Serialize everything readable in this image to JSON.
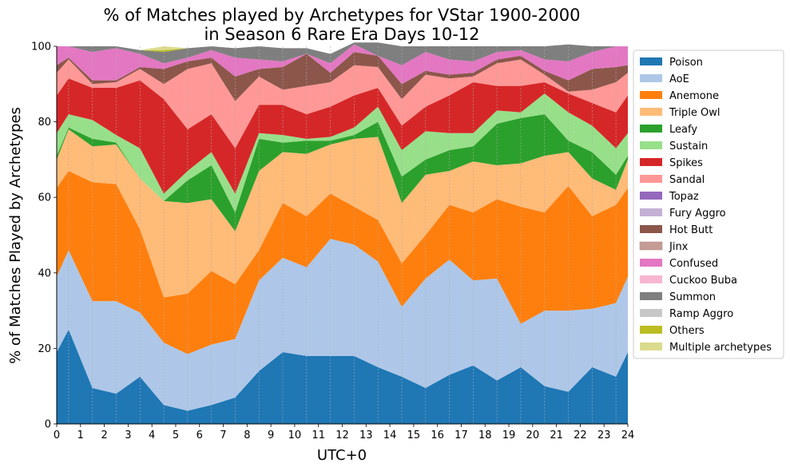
{
  "chart_data": {
    "type": "area",
    "stacked": true,
    "title_line1": "% of Matches played by Archetypes for VStar 1900-2000",
    "title_line2": "in Season 6 Rare Era Days 10-12",
    "xlabel": "UTC+0",
    "ylabel": "% of Matches Played by Archetypes",
    "xlim": [
      0,
      24
    ],
    "ylim": [
      0,
      100
    ],
    "x_ticks": [
      "0",
      "1",
      "2",
      "3",
      "4",
      "5",
      "6",
      "7",
      "8",
      "9",
      "10",
      "11",
      "12",
      "13",
      "14",
      "15",
      "16",
      "17",
      "18",
      "19",
      "20",
      "21",
      "22",
      "23",
      "24"
    ],
    "y_ticks": [
      "0",
      "20",
      "40",
      "60",
      "80",
      "100"
    ],
    "grid": "vertical dotted at half-hours",
    "legend_position": "outside right",
    "x": [
      0,
      0.5,
      1.5,
      2.5,
      3.5,
      4.5,
      5.5,
      6.5,
      7.5,
      8.5,
      9.5,
      10.5,
      11.5,
      12.5,
      13.5,
      14.5,
      15.5,
      16.5,
      17.5,
      18.5,
      19.5,
      20.5,
      21.5,
      22.5,
      23.5,
      24
    ],
    "series": [
      {
        "name": "Poison",
        "color": "#1f77b4",
        "values": [
          19,
          25,
          9.5,
          8,
          12.5,
          5,
          3.5,
          5,
          7,
          14,
          19,
          18,
          18,
          18,
          15,
          12.5,
          9.5,
          13,
          15.5,
          11.5,
          15,
          10,
          8.5,
          15,
          12.5,
          19
        ]
      },
      {
        "name": "AoE",
        "color": "#aec7e8",
        "values": [
          20,
          21,
          23,
          24.5,
          17,
          16.5,
          15,
          16,
          15.5,
          24,
          25,
          23.5,
          31,
          29.5,
          28,
          18.5,
          29,
          30.5,
          22.5,
          27,
          11.5,
          20,
          21.5,
          15.5,
          19.5,
          20
        ]
      },
      {
        "name": "Anemone",
        "color": "#ff7f0e",
        "values": [
          23.5,
          21,
          31.5,
          31,
          22,
          12,
          16,
          19.5,
          14.5,
          8,
          14.5,
          13.5,
          12,
          10,
          11,
          11.5,
          11.5,
          14.5,
          18,
          21,
          31,
          26,
          33,
          24.5,
          26,
          23.5
        ]
      },
      {
        "name": "Triple Owl",
        "color": "#ffbb78",
        "values": [
          7.5,
          11,
          9.5,
          10.5,
          13.5,
          25.5,
          24,
          19,
          14,
          21,
          13.5,
          16.5,
          13,
          18,
          22,
          16,
          16,
          9,
          13.5,
          9,
          11.5,
          15,
          9,
          10,
          4,
          7.5
        ]
      },
      {
        "name": "Leafy",
        "color": "#2ca02c",
        "values": [
          1,
          0.5,
          2,
          0.5,
          0,
          0,
          6,
          9,
          5,
          8.5,
          2.5,
          3.5,
          1,
          1,
          4,
          7,
          4,
          5.5,
          4,
          11,
          12,
          11,
          3,
          7,
          4,
          1
        ]
      },
      {
        "name": "Sustain",
        "color": "#98df8a",
        "values": [
          6,
          3.5,
          5,
          2,
          8,
          2,
          2.5,
          3.5,
          5,
          1.5,
          2,
          0.5,
          1,
          2,
          4,
          7,
          7.5,
          4.5,
          3.5,
          3.5,
          1.5,
          5.5,
          7.5,
          7,
          7,
          6
        ]
      },
      {
        "name": "Spikes",
        "color": "#d62728",
        "values": [
          10,
          9.5,
          8.5,
          12.5,
          18,
          25,
          11,
          10,
          12,
          7.5,
          8,
          6.5,
          8,
          8.5,
          5,
          6.5,
          6.5,
          10,
          13.5,
          6.5,
          7,
          3,
          5,
          6,
          9.5,
          10
        ]
      },
      {
        "name": "Sandal",
        "color": "#ff9896",
        "values": [
          6,
          5,
          1,
          1.5,
          3,
          4,
          16,
          13.5,
          12.5,
          7.5,
          4,
          7.5,
          6.5,
          8,
          5.5,
          7,
          8.5,
          4.5,
          1.5,
          6,
          7,
          2,
          0.5,
          3.5,
          8,
          6
        ]
      },
      {
        "name": "Topaz",
        "color": "#9467bd",
        "values": [
          0,
          0,
          0,
          0,
          0,
          0,
          0,
          0,
          0,
          0,
          0,
          0,
          0,
          0,
          0,
          0,
          0,
          0,
          0,
          0,
          0,
          0,
          0,
          0,
          0,
          0
        ]
      },
      {
        "name": "Fury Aggro",
        "color": "#c5b0d5",
        "values": [
          0,
          0,
          0,
          0,
          0,
          0,
          0,
          0,
          0,
          0,
          0,
          0,
          0,
          0,
          0,
          0,
          0,
          0,
          0,
          0,
          0,
          0,
          0,
          0,
          0,
          0
        ]
      },
      {
        "name": "Hot Butt",
        "color": "#8c564b",
        "values": [
          2,
          0.5,
          1,
          0.5,
          0.5,
          4,
          2,
          1.5,
          6.5,
          2,
          6,
          8.5,
          2.5,
          3.5,
          3,
          4,
          1,
          1,
          1,
          1,
          1,
          1,
          3,
          5.5,
          4,
          2
        ]
      },
      {
        "name": "Jinx",
        "color": "#c49c94",
        "values": [
          0,
          0,
          0,
          0,
          0,
          0,
          0,
          0,
          0,
          0,
          0,
          0,
          0,
          0,
          0,
          0,
          0,
          0,
          0,
          0,
          0,
          0,
          0,
          0,
          0,
          0
        ]
      },
      {
        "name": "Confused",
        "color": "#e377c2",
        "values": [
          5,
          3,
          7.5,
          8.5,
          3.5,
          1.5,
          1,
          2,
          5,
          2.5,
          1.5,
          0,
          2.5,
          2,
          0,
          5,
          5,
          4,
          3,
          2,
          1.5,
          3,
          5,
          4.5,
          5.5,
          5
        ]
      },
      {
        "name": "Cuckoo Buba",
        "color": "#f7b6d2",
        "values": [
          0,
          0,
          0,
          0,
          0,
          0,
          0,
          0,
          0,
          0,
          0,
          0,
          0,
          0,
          0,
          0,
          0,
          0,
          0,
          0,
          0,
          0,
          0,
          0,
          0,
          0
        ]
      },
      {
        "name": "Summon",
        "color": "#7f7f7f",
        "values": [
          0,
          0,
          1.5,
          0.5,
          1,
          3,
          2.5,
          1,
          2.5,
          3.5,
          3.5,
          1.5,
          2.5,
          0.5,
          3.5,
          5,
          1.5,
          3.5,
          4,
          1.5,
          1,
          3.5,
          4.5,
          1.5,
          0,
          0
        ]
      },
      {
        "name": "Ramp Aggro",
        "color": "#c7c7c7",
        "values": [
          0,
          0,
          0,
          0,
          0,
          0,
          0,
          0,
          0,
          0,
          0,
          0,
          0,
          0,
          0,
          0,
          0,
          0,
          0,
          0,
          0,
          0,
          0,
          0,
          0,
          0
        ]
      },
      {
        "name": "Others",
        "color": "#bcbd22",
        "values": [
          0,
          0,
          0,
          0,
          0,
          0.5,
          0,
          0,
          0,
          0,
          0,
          0,
          0,
          0,
          0,
          0,
          0,
          0,
          0,
          0,
          0,
          0,
          0,
          0,
          0,
          0
        ]
      },
      {
        "name": "Multiple archetypes",
        "color": "#dbdb8d",
        "values": [
          0,
          0,
          0,
          0,
          0,
          1,
          0,
          0,
          0,
          0,
          0,
          0,
          0,
          0,
          0,
          0,
          0,
          0,
          0,
          0,
          0,
          0,
          0,
          0,
          0,
          0
        ]
      }
    ]
  }
}
